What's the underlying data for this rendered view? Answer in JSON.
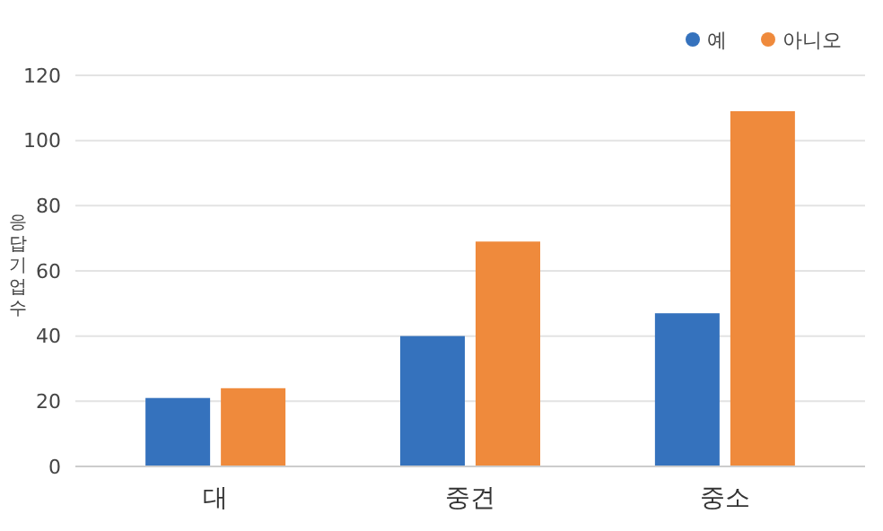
{
  "chart_data": {
    "type": "bar",
    "ylabel": "응답기업수",
    "categories": [
      "대",
      "중견",
      "중소"
    ],
    "series": [
      {
        "name": "예",
        "color": "#3572bd",
        "values": [
          21,
          40,
          47
        ]
      },
      {
        "name": "아니오",
        "color": "#ef8a3c",
        "values": [
          24,
          69,
          109
        ]
      }
    ],
    "ylim": [
      0,
      120
    ],
    "yticks": [
      0,
      20,
      40,
      60,
      80,
      100,
      120
    ],
    "grid": "y",
    "legend": "top right"
  }
}
